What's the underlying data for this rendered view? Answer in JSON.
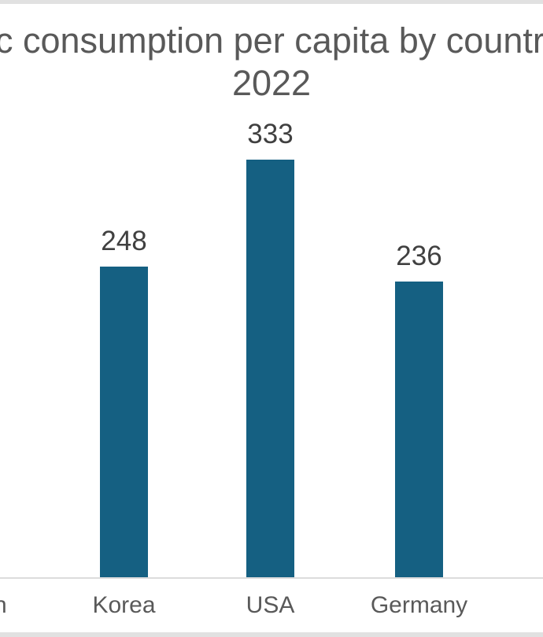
{
  "page": {
    "background": "#ffffff",
    "edge_strip_color": "#e1e1e1"
  },
  "chart_data": {
    "type": "bar",
    "title_visible_line1": "c consumption per capita by countr",
    "subtitle": "2022",
    "categories": [
      "Korea",
      "USA",
      "Germany"
    ],
    "values": [
      248,
      333,
      236
    ],
    "partial_left_category_label": "n",
    "bar_color": "#156082",
    "title_color": "#595959",
    "value_label_color": "#404040",
    "category_label_color": "#595959",
    "axis_line_color": "#dcdcdc",
    "value_axis_visible": false,
    "grid": false,
    "legend": false
  }
}
